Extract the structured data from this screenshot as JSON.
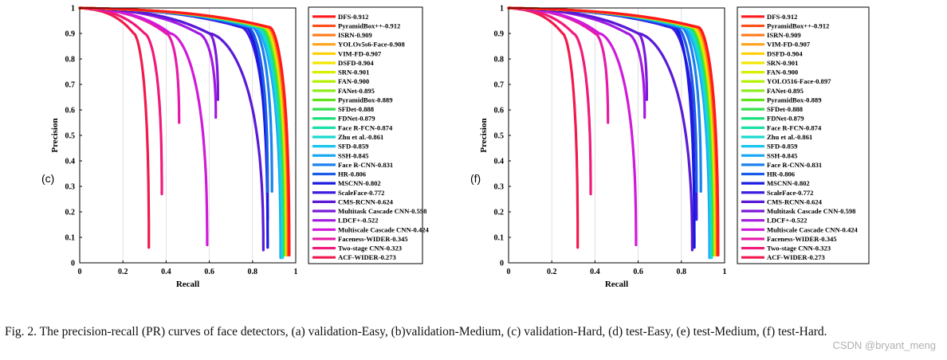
{
  "figure": {
    "caption": "Fig. 2.  The precision-recall (PR) curves of face detectors, (a) validation-Easy, (b)validation-Medium, (c) validation-Hard, (d) test-Easy, (e) test-Medium, (f) test-Hard.",
    "watermark": "CSDN @bryant_meng"
  },
  "chart_data": [
    {
      "panel": "(c)",
      "type": "line",
      "xlabel": "Recall",
      "ylabel": "Precision",
      "xlim": [
        0,
        1
      ],
      "ylim": [
        0,
        1
      ],
      "xticks": [
        "0",
        "0.2",
        "0.4",
        "0.6",
        "0.8",
        "1"
      ],
      "yticks": [
        "0",
        "0.1",
        "0.2",
        "0.3",
        "0.4",
        "0.5",
        "0.6",
        "0.7",
        "0.8",
        "0.9",
        "1"
      ],
      "grid": true,
      "legend_position": "right",
      "series": [
        {
          "name": "DFS-0.912",
          "color": "#ff1a1a",
          "knee": 0.88,
          "end_recall": 0.97,
          "end_precision": 0.03
        },
        {
          "name": "PyramidBox++-0.912",
          "color": "#ff4d1a",
          "knee": 0.88,
          "end_recall": 0.968,
          "end_precision": 0.03
        },
        {
          "name": "ISRN-0.909",
          "color": "#ff7a1a",
          "knee": 0.875,
          "end_recall": 0.965,
          "end_precision": 0.03
        },
        {
          "name": "YOLOv5s6-Face-0.908",
          "color": "#ffa31a",
          "knee": 0.87,
          "end_recall": 0.963,
          "end_precision": 0.03
        },
        {
          "name": "VIM-FD-0.907",
          "color": "#ffd000",
          "knee": 0.87,
          "end_recall": 0.962,
          "end_precision": 0.03
        },
        {
          "name": "DSFD-0.904",
          "color": "#f2e600",
          "knee": 0.865,
          "end_recall": 0.96,
          "end_precision": 0.03
        },
        {
          "name": "SRN-0.901",
          "color": "#d6f000",
          "knee": 0.86,
          "end_recall": 0.958,
          "end_precision": 0.03
        },
        {
          "name": "FAN-0.900",
          "color": "#b3f000",
          "knee": 0.86,
          "end_recall": 0.957,
          "end_precision": 0.03
        },
        {
          "name": "FANet-0.895",
          "color": "#8ced1a",
          "knee": 0.855,
          "end_recall": 0.955,
          "end_precision": 0.03
        },
        {
          "name": "PyramidBox-0.889",
          "color": "#5fe31a",
          "knee": 0.85,
          "end_recall": 0.952,
          "end_precision": 0.03
        },
        {
          "name": "SFDet-0.888",
          "color": "#33e04d",
          "knee": 0.848,
          "end_recall": 0.95,
          "end_precision": 0.03
        },
        {
          "name": "FDNet-0.879",
          "color": "#1ae07a",
          "knee": 0.84,
          "end_recall": 0.948,
          "end_precision": 0.03
        },
        {
          "name": "Face R-FCN-0.874",
          "color": "#1ae0a8",
          "knee": 0.835,
          "end_recall": 0.945,
          "end_precision": 0.03
        },
        {
          "name": "Zhu et al.-0.861",
          "color": "#1ad9d0",
          "knee": 0.825,
          "end_recall": 0.94,
          "end_precision": 0.02
        },
        {
          "name": "SFD-0.859",
          "color": "#1ac4f0",
          "knee": 0.82,
          "end_recall": 0.935,
          "end_precision": 0.02
        },
        {
          "name": "SSH-0.845",
          "color": "#1aa8f5",
          "knee": 0.81,
          "end_recall": 0.93,
          "end_precision": 0.02
        },
        {
          "name": "Face R-CNN-0.831",
          "color": "#1a80f0",
          "knee": 0.8,
          "end_recall": 0.89,
          "end_precision": 0.28
        },
        {
          "name": "HR-0.806",
          "color": "#1a5ce8",
          "knee": 0.78,
          "end_recall": 0.87,
          "end_precision": 0.28
        },
        {
          "name": "MSCNN-0.802",
          "color": "#1a1ae0",
          "knee": 0.77,
          "end_recall": 0.87,
          "end_precision": 0.06
        },
        {
          "name": "ScaleFace-0.772",
          "color": "#3d1ae0",
          "knee": 0.75,
          "end_recall": 0.87,
          "end_precision": 0.17
        },
        {
          "name": "CMS-RCNN-0.624",
          "color": "#5a1ad6",
          "knee": 0.6,
          "end_recall": 0.85,
          "end_precision": 0.05
        },
        {
          "name": "Multitask Cascade CNN-0.598",
          "color": "#7a1ad9",
          "knee": 0.6,
          "end_recall": 0.64,
          "end_precision": 0.64
        },
        {
          "name": "LDCF+-0.522",
          "color": "#a31ae0",
          "knee": 0.55,
          "end_recall": 0.63,
          "end_precision": 0.57
        },
        {
          "name": "Multiscale Cascade CNN-0.424",
          "color": "#d11ad9",
          "knee": 0.42,
          "end_recall": 0.59,
          "end_precision": 0.07
        },
        {
          "name": "Faceness-WIDER-0.345",
          "color": "#e61aa8",
          "knee": 0.4,
          "end_recall": 0.46,
          "end_precision": 0.55
        },
        {
          "name": "Two-stage CNN-0.323",
          "color": "#f01a7a",
          "knee": 0.3,
          "end_recall": 0.38,
          "end_precision": 0.27
        },
        {
          "name": "ACF-WIDER-0.273",
          "color": "#f01a4d",
          "knee": 0.25,
          "end_recall": 0.32,
          "end_precision": 0.06
        }
      ]
    },
    {
      "panel": "(f)",
      "type": "line",
      "xlabel": "Recall",
      "ylabel": "Precision",
      "xlim": [
        0,
        1
      ],
      "ylim": [
        0,
        1
      ],
      "xticks": [
        "0",
        "0.2",
        "0.4",
        "0.6",
        "0.8",
        "1"
      ],
      "yticks": [
        "0",
        "0.1",
        "0.2",
        "0.3",
        "0.4",
        "0.5",
        "0.6",
        "0.7",
        "0.8",
        "0.9",
        "1"
      ],
      "grid": true,
      "legend_position": "right",
      "series": [
        {
          "name": "DFS-0.912",
          "color": "#ff1a1a",
          "knee": 0.88,
          "end_recall": 0.97,
          "end_precision": 0.03
        },
        {
          "name": "PyramidBox++-0.912",
          "color": "#ff4d1a",
          "knee": 0.88,
          "end_recall": 0.968,
          "end_precision": 0.03
        },
        {
          "name": "ISRN-0.909",
          "color": "#ff7a1a",
          "knee": 0.875,
          "end_recall": 0.965,
          "end_precision": 0.03
        },
        {
          "name": "VIM-FD-0.907",
          "color": "#ffa31a",
          "knee": 0.87,
          "end_recall": 0.963,
          "end_precision": 0.03
        },
        {
          "name": "DSFD-0.904",
          "color": "#ffd000",
          "knee": 0.865,
          "end_recall": 0.962,
          "end_precision": 0.03
        },
        {
          "name": "SRN-0.901",
          "color": "#f2e600",
          "knee": 0.86,
          "end_recall": 0.96,
          "end_precision": 0.03
        },
        {
          "name": "FAN-0.900",
          "color": "#d6f000",
          "knee": 0.86,
          "end_recall": 0.958,
          "end_precision": 0.03
        },
        {
          "name": "YOLO516-Face-0.897",
          "color": "#b3f000",
          "knee": 0.855,
          "end_recall": 0.956,
          "end_precision": 0.03
        },
        {
          "name": "FANet-0.895",
          "color": "#8ced1a",
          "knee": 0.855,
          "end_recall": 0.955,
          "end_precision": 0.03
        },
        {
          "name": "PyramidBox-0.889",
          "color": "#5fe31a",
          "knee": 0.85,
          "end_recall": 0.952,
          "end_precision": 0.03
        },
        {
          "name": "SFDet-0.888",
          "color": "#33e04d",
          "knee": 0.848,
          "end_recall": 0.95,
          "end_precision": 0.03
        },
        {
          "name": "FDNet-0.879",
          "color": "#1ae07a",
          "knee": 0.84,
          "end_recall": 0.948,
          "end_precision": 0.03
        },
        {
          "name": "Face R-FCN-0.874",
          "color": "#1ae0a8",
          "knee": 0.835,
          "end_recall": 0.945,
          "end_precision": 0.03
        },
        {
          "name": "Zhu et al.-0.861",
          "color": "#1ad9d0",
          "knee": 0.825,
          "end_recall": 0.94,
          "end_precision": 0.02
        },
        {
          "name": "SFD-0.859",
          "color": "#1ac4f0",
          "knee": 0.82,
          "end_recall": 0.935,
          "end_precision": 0.02
        },
        {
          "name": "SSH-0.845",
          "color": "#1aa8f5",
          "knee": 0.81,
          "end_recall": 0.93,
          "end_precision": 0.02
        },
        {
          "name": "Face R-CNN-0.831",
          "color": "#1a80f0",
          "knee": 0.8,
          "end_recall": 0.89,
          "end_precision": 0.28
        },
        {
          "name": "HR-0.806",
          "color": "#1a5ce8",
          "knee": 0.78,
          "end_recall": 0.87,
          "end_precision": 0.28
        },
        {
          "name": "MSCNN-0.802",
          "color": "#1a1ae0",
          "knee": 0.77,
          "end_recall": 0.86,
          "end_precision": 0.06
        },
        {
          "name": "ScaleFace-0.772",
          "color": "#3d1ae0",
          "knee": 0.75,
          "end_recall": 0.87,
          "end_precision": 0.17
        },
        {
          "name": "CMS-RCNN-0.624",
          "color": "#5a1ad6",
          "knee": 0.6,
          "end_recall": 0.85,
          "end_precision": 0.05
        },
        {
          "name": "Multitask Cascade CNN-0.598",
          "color": "#7a1ad9",
          "knee": 0.6,
          "end_recall": 0.64,
          "end_precision": 0.64
        },
        {
          "name": "LDCF+-0.522",
          "color": "#a31ae0",
          "knee": 0.55,
          "end_recall": 0.63,
          "end_precision": 0.57
        },
        {
          "name": "Multiscale Cascade CNN-0.424",
          "color": "#d11ad9",
          "knee": 0.42,
          "end_recall": 0.59,
          "end_precision": 0.07
        },
        {
          "name": "Faceness-WIDER-0.345",
          "color": "#e61aa8",
          "knee": 0.4,
          "end_recall": 0.46,
          "end_precision": 0.55
        },
        {
          "name": "Two-stage CNN-0.323",
          "color": "#f01a7a",
          "knee": 0.3,
          "end_recall": 0.38,
          "end_precision": 0.27
        },
        {
          "name": "ACF-WIDER-0.273",
          "color": "#f01a4d",
          "knee": 0.25,
          "end_recall": 0.32,
          "end_precision": 0.06
        }
      ]
    }
  ]
}
